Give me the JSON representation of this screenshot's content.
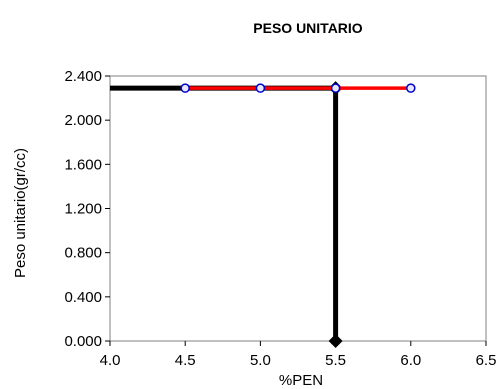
{
  "chart_data": {
    "type": "line",
    "title": "PESO UNITARIO",
    "xlabel": "%PEN",
    "ylabel": "Peso unitario(gr/cc)",
    "xlim": [
      4.0,
      6.5
    ],
    "ylim": [
      0.0,
      2.4
    ],
    "x_ticks": [
      "4.0",
      "4.5",
      "5.0",
      "5.5",
      "6.0",
      "6.5"
    ],
    "y_ticks": [
      "0.000",
      "0.400",
      "0.800",
      "1.200",
      "1.600",
      "2.000",
      "2.400"
    ],
    "grid": false,
    "legend": "none",
    "series": [
      {
        "color": "#ff0000",
        "marker": "circle",
        "marker_color": "#0000cc",
        "x": [
          4.5,
          5.0,
          5.5,
          6.0
        ],
        "y": [
          2.29,
          2.29,
          2.29,
          2.29
        ]
      }
    ],
    "reference_lines": {
      "color": "#000000",
      "horizontal": {
        "y": 2.29,
        "x_from": 4.0,
        "x_to": 5.5
      },
      "vertical": {
        "x": 5.5,
        "y_from": 0.0,
        "y_to": 2.29
      },
      "endpoint_marker": "diamond"
    }
  }
}
